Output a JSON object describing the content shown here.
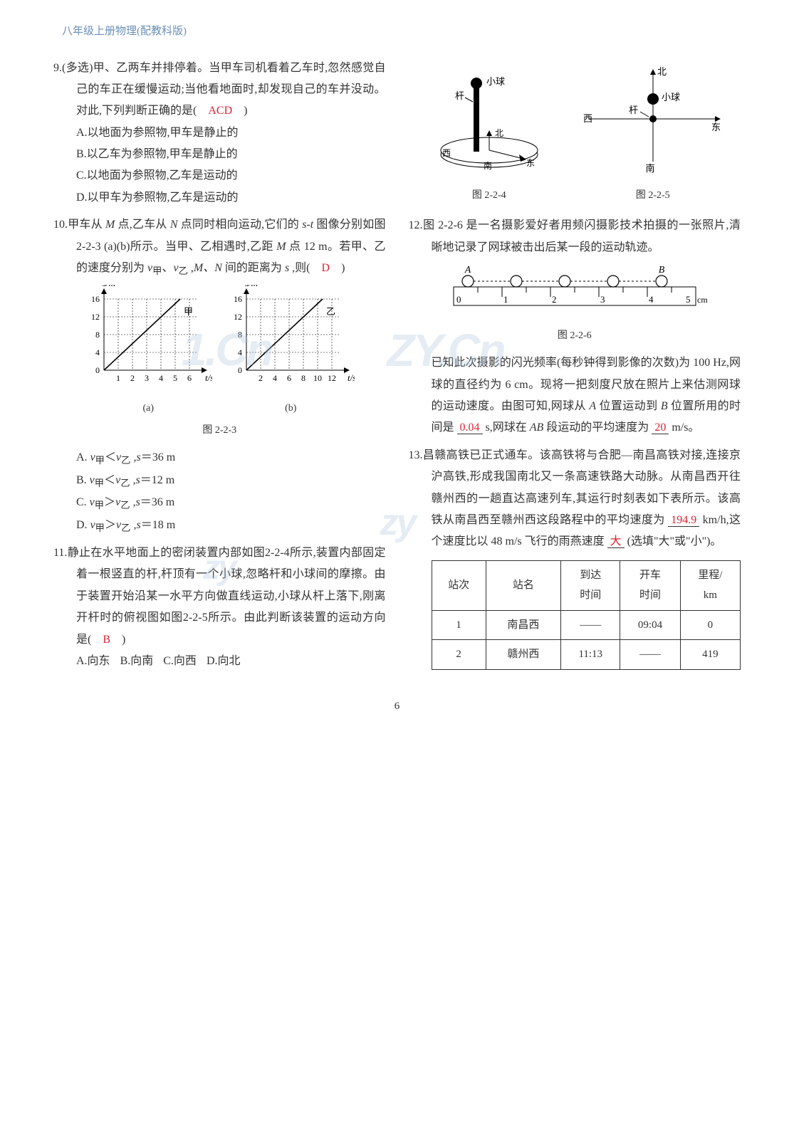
{
  "header": "八年级上册物理(配教科版)",
  "page_number": "6",
  "left": {
    "q9": {
      "stem": "9.(多选)甲、乙两车并排停着。当甲车司机看着乙车时,忽然感觉自己的车正在缓慢运动;当他看地面时,却发现自己的车并没动。对此,下列判断正确的是(　",
      "answer": "ACD",
      "stem_end": "　)",
      "A": "A.以地面为参照物,甲车是静止的",
      "B": "B.以乙车为参照物,甲车是静止的",
      "C": "C.以地面为参照物,乙车是运动的",
      "D": "D.以甲车为参照物,乙车是运动的"
    },
    "q10": {
      "stem_a": "10.甲车从 ",
      "M": "M",
      "stem_b": " 点,乙车从 ",
      "N": "N",
      "stem_c": " 点同时相向运动,它们的 ",
      "st": "s-t",
      "stem_d": " 图像分别如图 2-2-3 (a)(b)所示。当甲、乙相遇时,乙距 ",
      "M2": "M",
      "stem_e": " 点 12 m。若甲、乙的速度分别为 ",
      "vjia": "v",
      "sub1": "甲",
      "comma1": "、",
      "vyi": "v",
      "sub2": "乙",
      "stem_f": " ,",
      "MN": "M、N",
      "stem_g": " 间的距离为 ",
      "s": "s",
      "stem_h": " ,则(　",
      "answer": "D",
      "stem_end": "　)",
      "fig_cap": "图 2-2-3",
      "graph_a": {
        "label_a": "(a)",
        "ylabel": "s/m",
        "xlabel": "t/s",
        "yticks": [
          "0",
          "4",
          "8",
          "12",
          "16"
        ],
        "xticks": [
          "1",
          "2",
          "3",
          "4",
          "5",
          "6"
        ],
        "series_label": "甲"
      },
      "graph_b": {
        "label_b": "(b)",
        "ylabel": "s/m",
        "xlabel": "t/s",
        "yticks": [
          "0",
          "4",
          "8",
          "12",
          "16"
        ],
        "xticks": [
          "2",
          "4",
          "6",
          "8",
          "10",
          "12"
        ],
        "series_label": "乙"
      },
      "optA": {
        "pre": "A. ",
        "v1": "v",
        "s1": "甲",
        "rel": "＜",
        "v2": "v",
        "s2": "乙",
        "tail": " ,",
        "sv": "s",
        "eq": "＝36 m"
      },
      "optB": {
        "pre": "B. ",
        "v1": "v",
        "s1": "甲",
        "rel": "＜",
        "v2": "v",
        "s2": "乙",
        "tail": " ,",
        "sv": "s",
        "eq": "＝12 m"
      },
      "optC": {
        "pre": "C. ",
        "v1": "v",
        "s1": "甲",
        "rel": "＞",
        "v2": "v",
        "s2": "乙",
        "tail": " ,",
        "sv": "s",
        "eq": "＝36 m"
      },
      "optD": {
        "pre": "D. ",
        "v1": "v",
        "s1": "甲",
        "rel": "＞",
        "v2": "v",
        "s2": "乙",
        "tail": " ,",
        "sv": "s",
        "eq": "＝18 m"
      }
    },
    "q11": {
      "stem": "11.静止在水平地面上的密闭装置内部如图2-2-4所示,装置内部固定着一根竖直的杆,杆顶有一个小球,忽略杆和小球间的摩擦。由于装置开始沿某一水平方向做直线运动,小球从杆上落下,刚离开杆时的俯视图如图2-2-5所示。由此判断该装置的运动方向是(　",
      "answer": "B",
      "stem_end": "　)",
      "A": "A.向东",
      "B": "B.向南",
      "C": "C.向西",
      "D": "D.向北"
    }
  },
  "right": {
    "fig224": {
      "cap": "图 2-2-4",
      "labels": {
        "gan": "杆",
        "ball": "小球",
        "n": "北",
        "e": "东",
        "s": "南",
        "w": "西"
      }
    },
    "fig225": {
      "cap": "图 2-2-5",
      "labels": {
        "gan": "杆",
        "ball": "小球",
        "n": "北",
        "e": "东",
        "s": "南",
        "w": "西"
      }
    },
    "q12": {
      "stem_a": "12.图 2-2-6 是一名摄影爱好者用频闪摄影技术拍摄的一张照片,清晰地记录了网球被击出后某一段的运动轨迹。",
      "fig_cap": "图 2-2-6",
      "ruler": {
        "A": "A",
        "B": "B",
        "ticks": [
          "0",
          "1",
          "2",
          "3",
          "4",
          "5"
        ],
        "unit": "cm"
      },
      "stem_b": "已知此次摄影的闪光频率(每秒钟得到影像的次数)为 100 Hz,网球的直径约为 6 cm。现将一把刻度尺放在照片上来估测网球的运动速度。由图可知,网球从 ",
      "A": "A",
      "stem_c": " 位置运动到 ",
      "B": "B",
      "stem_d": " 位置所用的时间是",
      "ans1": "0.04",
      "unit1": " s,网球在 ",
      "AB": "AB",
      "stem_e": " 段运动的平均速度为",
      "ans2": "20",
      "unit2": " m/s。"
    },
    "q13": {
      "stem_a": "13.昌赣高铁已正式通车。该高铁将与合肥—南昌高铁对接,连接京沪高铁,形成我国南北又一条高速铁路大动脉。从南昌西开往赣州西的一趟直达高速列车,其运行时刻表如下表所示。该高铁从南昌西至赣州西这段路程中的平均速度为",
      "ans1": "194.9",
      "unit1": " km/h,这个速度比以 48 m/s 飞行的雨燕速度",
      "ans2": "大",
      "tail": "(选填\"大\"或\"小\")。",
      "table": {
        "headers": [
          "站次",
          "站名",
          "到达\n时间",
          "开车\n时间",
          "里程/\nkm"
        ],
        "rows": [
          [
            "1",
            "南昌西",
            "——",
            "09:04",
            "0"
          ],
          [
            "2",
            "赣州西",
            "11:13",
            "——",
            "419"
          ]
        ]
      }
    }
  }
}
